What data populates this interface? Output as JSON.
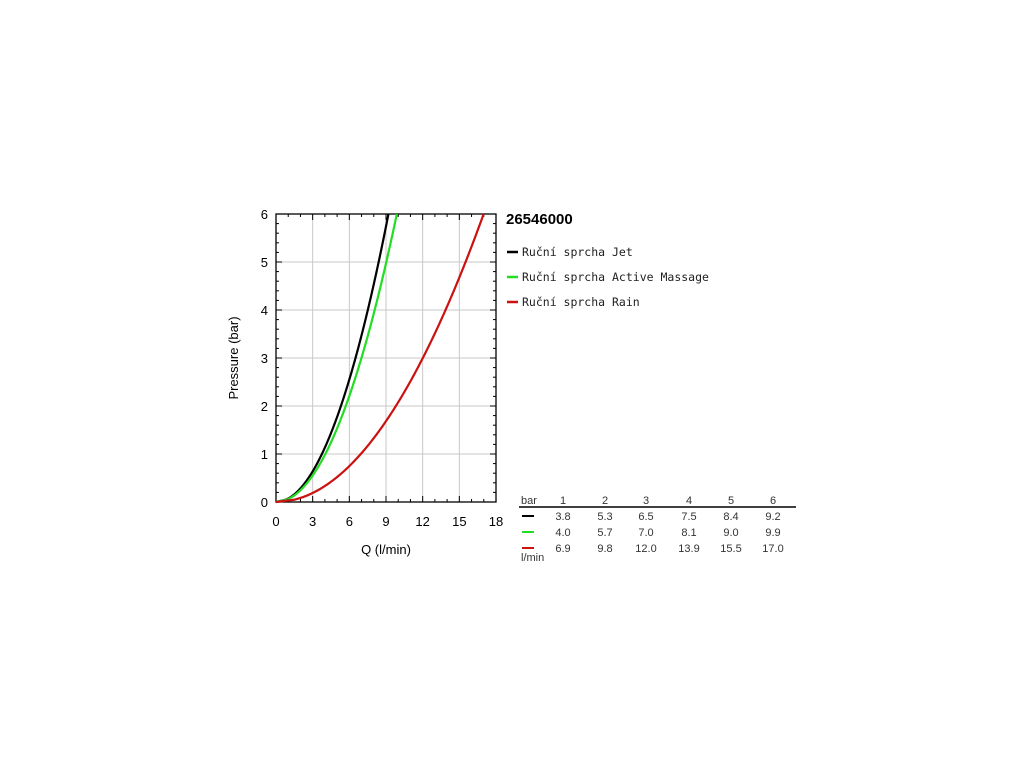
{
  "chart_data": {
    "type": "line",
    "title": "26546000",
    "xlabel": "Q (l/min)",
    "ylabel": "Pressure (bar)",
    "xlim": [
      0,
      18
    ],
    "ylim": [
      0,
      6
    ],
    "xticks": [
      "0",
      "3",
      "6",
      "9",
      "12",
      "15",
      "18"
    ],
    "yticks": [
      "0",
      "1",
      "2",
      "3",
      "4",
      "5",
      "6"
    ],
    "grid": true,
    "legend_position": "right",
    "series": [
      {
        "name": "Ruční sprcha Jet",
        "color": "#000000",
        "x": [
          0,
          3.8,
          5.3,
          6.5,
          7.5,
          8.4,
          9.2
        ],
        "y": [
          0,
          1,
          2,
          3,
          4,
          5,
          6
        ]
      },
      {
        "name": "Ruční sprcha Active Massage",
        "color": "#22dd22",
        "x": [
          0,
          4.0,
          5.7,
          7.0,
          8.1,
          9.0,
          9.9
        ],
        "y": [
          0,
          1,
          2,
          3,
          4,
          5,
          6
        ]
      },
      {
        "name": "Ruční sprcha Rain",
        "color": "#cc1111",
        "x": [
          0,
          6.9,
          9.8,
          12.0,
          13.9,
          15.5,
          17.0
        ],
        "y": [
          0,
          1,
          2,
          3,
          4,
          5,
          6
        ]
      }
    ],
    "table": {
      "header_label": "bar",
      "unit_label": "l/min",
      "pressures": [
        "1",
        "2",
        "3",
        "4",
        "5",
        "6"
      ],
      "rows": [
        {
          "color": "#000000",
          "values": [
            "3.8",
            "5.3",
            "6.5",
            "7.5",
            "8.4",
            "9.2"
          ]
        },
        {
          "color": "#22dd22",
          "values": [
            "4.0",
            "5.7",
            "7.0",
            "8.1",
            "9.0",
            "9.9"
          ]
        },
        {
          "color": "#cc1111",
          "values": [
            "6.9",
            "9.8",
            "12.0",
            "13.9",
            "15.5",
            "17.0"
          ]
        }
      ]
    }
  }
}
